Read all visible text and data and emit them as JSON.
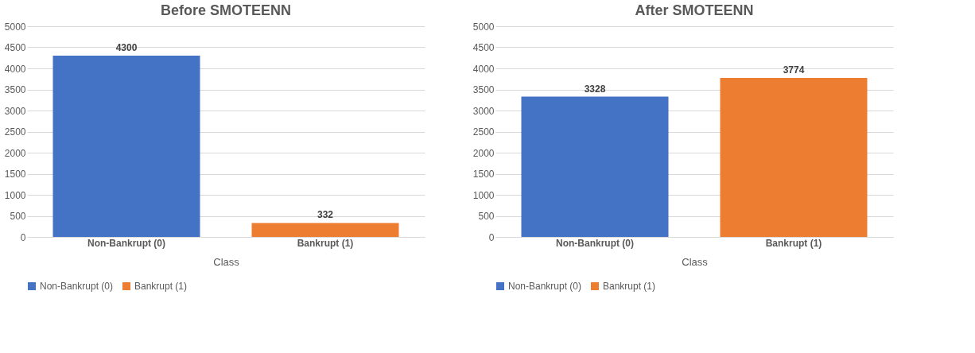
{
  "chart_data": [
    {
      "type": "bar",
      "title": "Before SMOTEENN",
      "xlabel": "Class",
      "categories": [
        "Non-Bankrupt (0)",
        "Bankrupt (1)"
      ],
      "series": [
        {
          "name": "Non-Bankrupt (0)",
          "color": "#4472c4",
          "values": [
            4300,
            null
          ]
        },
        {
          "name": "Bankrupt (1)",
          "color": "#ed7d31",
          "values": [
            null,
            332
          ]
        }
      ],
      "ylim": [
        0,
        5000
      ],
      "yticks": [
        0,
        500,
        1000,
        1500,
        2000,
        2500,
        3000,
        3500,
        4000,
        4500,
        5000
      ],
      "grid": "y",
      "legend": "bottom",
      "data_labels": true
    },
    {
      "type": "bar",
      "title": "After SMOTEENN",
      "xlabel": "Class",
      "categories": [
        "Non-Bankrupt (0)",
        "Bankrupt (1)"
      ],
      "series": [
        {
          "name": "Non-Bankrupt (0)",
          "color": "#4472c4",
          "values": [
            3328,
            null
          ]
        },
        {
          "name": "Bankrupt (1)",
          "color": "#ed7d31",
          "values": [
            null,
            3774
          ]
        }
      ],
      "ylim": [
        0,
        5000
      ],
      "yticks": [
        0,
        500,
        1000,
        1500,
        2000,
        2500,
        3000,
        3500,
        4000,
        4500,
        5000
      ],
      "grid": "y",
      "legend": "bottom",
      "data_labels": true
    }
  ]
}
